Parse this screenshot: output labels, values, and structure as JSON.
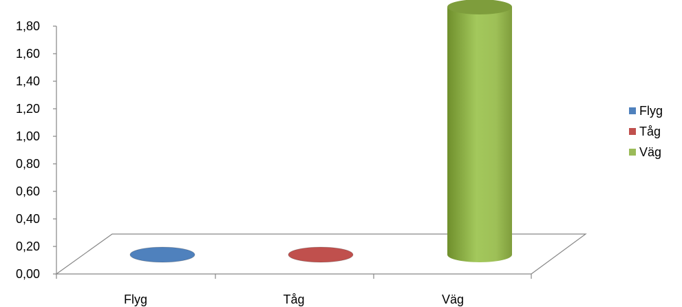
{
  "chart_data": {
    "type": "bar",
    "style": "3d-cylinder",
    "categories": [
      "Flyg",
      "Tåg",
      "Väg"
    ],
    "series": [
      {
        "name": "Flyg",
        "color": "#4F81BD",
        "values": [
          0.0,
          null,
          null
        ]
      },
      {
        "name": "Tåg",
        "color": "#C0504D",
        "values": [
          null,
          0.0,
          null
        ]
      },
      {
        "name": "Väg",
        "color": "#9BBB59",
        "values": [
          null,
          null,
          1.8
        ]
      }
    ],
    "yticks": [
      "0,00",
      "0,20",
      "0,40",
      "0,60",
      "0,80",
      "1,00",
      "1,20",
      "1,40",
      "1,60",
      "1,80"
    ],
    "ylim": [
      0,
      1.8
    ],
    "grid": false,
    "legend_position": "right"
  }
}
